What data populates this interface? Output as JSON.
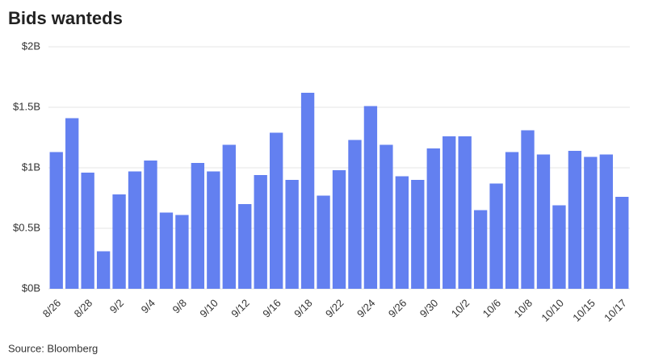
{
  "chart_data": {
    "type": "bar",
    "title": "Bids wanteds",
    "source": "Source: Bloomberg",
    "categories": [
      "8/26",
      null,
      "8/28",
      null,
      "9/2",
      null,
      "9/4",
      null,
      "9/8",
      null,
      "9/10",
      null,
      "9/12",
      null,
      "9/16",
      null,
      "9/18",
      null,
      "9/22",
      null,
      "9/24",
      null,
      "9/26",
      null,
      "9/30",
      null,
      "10/2",
      null,
      "10/6",
      null,
      "10/8",
      null,
      "10/10",
      null,
      "10/15",
      null,
      "10/17"
    ],
    "values": [
      1.13,
      1.41,
      0.96,
      0.31,
      0.78,
      0.97,
      1.06,
      0.63,
      0.61,
      1.04,
      0.97,
      1.19,
      0.7,
      0.94,
      1.29,
      0.9,
      1.62,
      0.77,
      0.98,
      1.23,
      1.51,
      1.19,
      0.93,
      0.9,
      1.16,
      1.26,
      1.26,
      0.65,
      0.87,
      1.13,
      1.31,
      1.11,
      0.69,
      1.14,
      1.09,
      1.11,
      0.76
    ],
    "color": "#6380f0",
    "ylim": [
      0,
      2
    ],
    "yticks": [
      {
        "value": 0,
        "label": "$0B"
      },
      {
        "value": 0.5,
        "label": "$0.5B"
      },
      {
        "value": 1,
        "label": "$1B"
      },
      {
        "value": 1.5,
        "label": "$1.5B"
      },
      {
        "value": 2,
        "label": "$2B"
      }
    ],
    "grid": true
  }
}
